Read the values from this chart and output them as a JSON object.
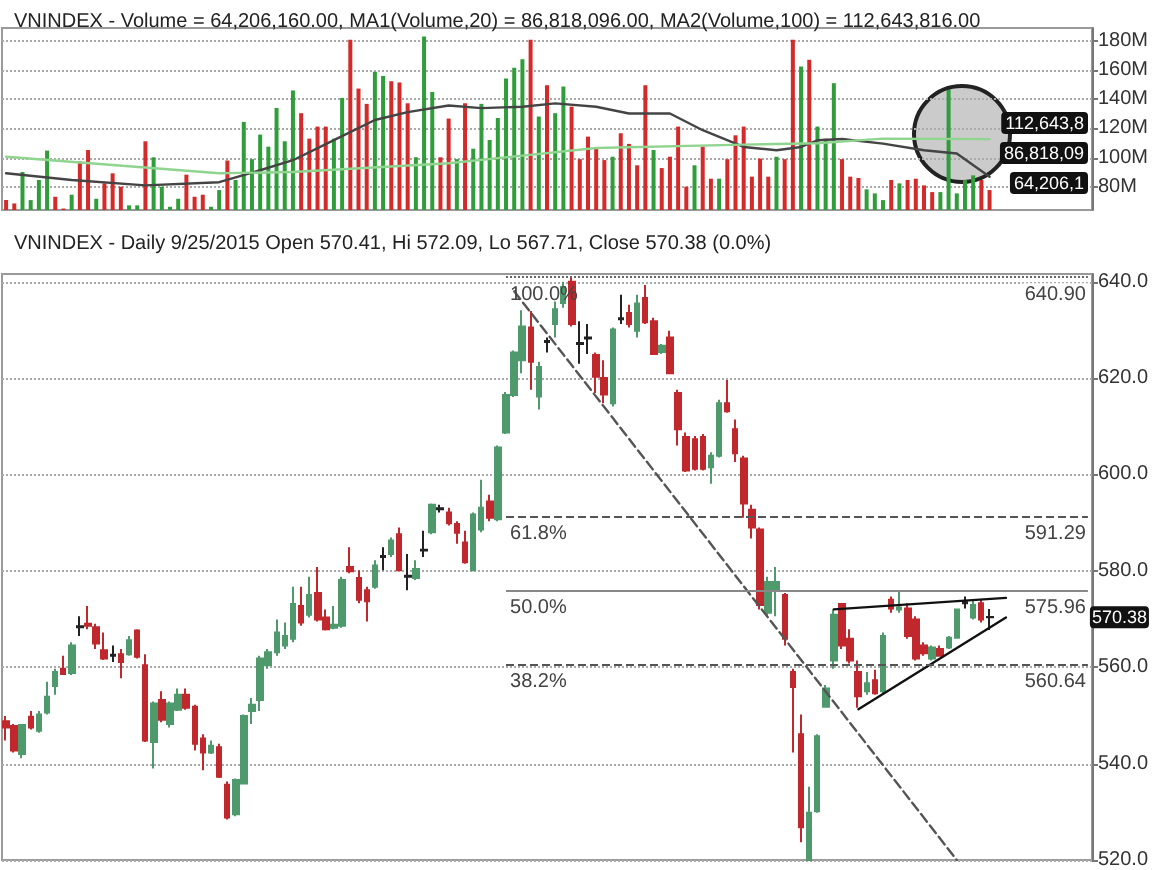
{
  "chart_data": [
    {
      "type": "bar",
      "title": "VNINDEX - Volume = 64,206,160.00, MA1(Volume,20) = 86,818,096.00, MA2(Volume,100) = 112,643,816.00",
      "categories": [
        null,
        null,
        null,
        null,
        null,
        null,
        null,
        null,
        null,
        null,
        null,
        null,
        null,
        null,
        null,
        null,
        null,
        null,
        null,
        null,
        null,
        null,
        null,
        null,
        null,
        null,
        null,
        null,
        null,
        null,
        null,
        null,
        null,
        null,
        null,
        null,
        null,
        null,
        null,
        null,
        null,
        null,
        null,
        null,
        null,
        null,
        null,
        null,
        null,
        null,
        null,
        null,
        null,
        null,
        null,
        null,
        null,
        null,
        null,
        null,
        null,
        null,
        null,
        null,
        null,
        null,
        null,
        null,
        null,
        null,
        null,
        null,
        null,
        null,
        null,
        null,
        null,
        null,
        null,
        null,
        null,
        null,
        null,
        null,
        null,
        null,
        null,
        null,
        null,
        null,
        null,
        null,
        null,
        null,
        null,
        null,
        null,
        null,
        null,
        null,
        null,
        null,
        null,
        null,
        null,
        null,
        null,
        null,
        null,
        null,
        null,
        null,
        null,
        null,
        null,
        null,
        null,
        null,
        null,
        null,
        null,
        null,
        null,
        null,
        null,
        null,
        null,
        null,
        null,
        null,
        null,
        null,
        null
      ],
      "series": [
        {
          "values": [
            70.8,
            68.5,
            90.1,
            70.8,
            84.6,
            104.8,
            73.1,
            65,
            74.5,
            97.4,
            105.2,
            71.7,
            82.3,
            89.2,
            80,
            67.2,
            67.2,
            111.2,
            100.2,
            80,
            66.2,
            71.7,
            88.3,
            73.1,
            74.5,
            66.2,
            77.7,
            98,
            84.6,
            124.5,
            98.9,
            115.8,
            107.5,
            134.1,
            111.2,
            146.1,
            130.5,
            113,
            121.3,
            121.3,
            113,
            141,
            180.9,
            147.4,
            136.9,
            158.9,
            156.1,
            152.5,
            151.6,
            137.3,
            100.2,
            183.2,
            145.1,
            100.2,
            126.8,
            98.9,
            137.3,
            106.1,
            136.9,
            112.1,
            127.2,
            154.3,
            161.7,
            167.6,
            180.9,
            128.2,
            149.7,
            130.5,
            148.8,
            135,
            98.9,
            114.4,
            106.1,
            98.3,
            100.6,
            116.7,
            109.4,
            94.7,
            149.7,
            105.2,
            92.8,
            100.6,
            121.3,
            80,
            94.7,
            107.5,
            85.5,
            85.5,
            98.9,
            115.3,
            121.3,
            86.9,
            99.3,
            86.9,
            100.6,
            98.9,
            180.9,
            162.6,
            167.2,
            121.3,
            113,
            151.1,
            98.9,
            86.9,
            86,
            78.2,
            75.4,
            70.8,
            84.6,
            82.3,
            84.6,
            85.5,
            80.9,
            76.3,
            76.3,
            146.5,
            75.4,
            84.6,
            87.8,
            84.6,
            77.7,
            null,
            null,
            null,
            null,
            null,
            null,
            null,
            null,
            null,
            null,
            null,
            null
          ],
          "colors": [
            "#d42a2a",
            "#d42a2a",
            "#2f9e3a",
            "#2f9e3a",
            "#2f9e3a",
            "#2f9e3a",
            "#d42a2a",
            "#d42a2a",
            "#2f9e3a",
            "#d42a2a",
            "#d42a2a",
            "#2f9e3a",
            "#d42a2a",
            "#d42a2a",
            "#d42a2a",
            "#2f9e3a",
            "#2f9e3a",
            "#d42a2a",
            "#2f9e3a",
            "#2f9e3a",
            "#2f9e3a",
            "#2f9e3a",
            "#d42a2a",
            "#d42a2a",
            "#d42a2a",
            "#2f9e3a",
            "#2f9e3a",
            "#d42a2a",
            "#2f9e3a",
            "#2f9e3a",
            "#2f9e3a",
            "#2f9e3a",
            "#2f9e3a",
            "#2f9e3a",
            "#2f9e3a",
            "#2f9e3a",
            "#d42a2a",
            "#d42a2a",
            "#d42a2a",
            "#d42a2a",
            "#2f9e3a",
            "#2f9e3a",
            "#d42a2a",
            "#d42a2a",
            "#d42a2a",
            "#2f9e3a",
            "#2f9e3a",
            "#d42a2a",
            "#d42a2a",
            "#d42a2a",
            "#2f9e3a",
            "#2f9e3a",
            "#2f9e3a",
            "#d42a2a",
            "#d42a2a",
            "#2f9e3a",
            "#d42a2a",
            "#2f9e3a",
            "#2f9e3a",
            "#2f9e3a",
            "#2f9e3a",
            "#2f9e3a",
            "#2f9e3a",
            "#2f9e3a",
            "#d42a2a",
            "#2f9e3a",
            "#d42a2a",
            "#2f9e3a",
            "#2f9e3a",
            "#d42a2a",
            "#d42a2a",
            "#d42a2a",
            "#d42a2a",
            "#d42a2a",
            "#2f9e3a",
            "#d42a2a",
            "#d42a2a",
            "#d42a2a",
            "#d42a2a",
            "#2f9e3a",
            "#d42a2a",
            "#d42a2a",
            "#d42a2a",
            "#d42a2a",
            "#2f9e3a",
            "#d42a2a",
            "#d42a2a",
            "#2f9e3a",
            "#d42a2a",
            "#d42a2a",
            "#d42a2a",
            "#d42a2a",
            "#d42a2a",
            "#d42a2a",
            "#2f9e3a",
            "#d42a2a",
            "#d42a2a",
            "#2f9e3a",
            "#d42a2a",
            "#2f9e3a",
            "#2f9e3a",
            "#2f9e3a",
            "#d42a2a",
            "#d42a2a",
            "#d42a2a",
            "#2f9e3a",
            "#2f9e3a",
            "#2f9e3a",
            "#d42a2a",
            "#2f9e3a",
            "#d42a2a",
            "#d42a2a",
            "#d42a2a",
            "#d42a2a",
            "#2f9e3a",
            "#2f9e3a",
            "#2f9e3a",
            "#2f9e3a",
            "#2f9e3a",
            "#d42a2a",
            "#d42a2a",
            null,
            null,
            null,
            null,
            null,
            null,
            null,
            null,
            null,
            null,
            null,
            null
          ]
        },
        {
          "type": "line",
          "color": "#444444",
          "values": [
            89.2,
            null,
            null,
            null,
            null,
            null,
            null,
            null,
            84.6,
            null,
            null,
            null,
            null,
            null,
            null,
            null,
            null,
            80.9,
            null,
            null,
            null,
            null,
            null,
            null,
            null,
            null,
            83.1,
            null,
            null,
            null,
            null,
            91.3,
            null,
            null,
            null,
            98.2,
            null,
            null,
            null,
            null,
            112,
            null,
            null,
            null,
            null,
            125.8,
            null,
            null,
            null,
            131.2,
            null,
            null,
            null,
            null,
            135.8,
            null,
            null,
            null,
            134,
            null,
            null,
            null,
            null,
            134.9,
            null,
            null,
            null,
            137.2,
            null,
            null,
            null,
            null,
            134.9,
            null,
            null,
            null,
            130.3,
            null,
            null,
            null,
            null,
            130.3,
            null,
            null,
            null,
            118.8,
            null,
            null,
            null,
            null,
            107.3,
            null,
            null,
            null,
            105,
            null,
            null,
            107.3,
            null,
            111.9,
            null,
            null,
            112.8,
            null,
            null,
            null,
            null,
            109.6,
            null,
            null,
            null,
            null,
            105,
            null,
            null,
            null,
            102.8,
            null,
            null,
            null,
            86.818,
            null,
            null,
            null,
            null,
            null,
            null,
            null,
            null,
            null,
            null,
            null,
            null
          ]
        },
        {
          "type": "line",
          "color": "#8fd48f",
          "values": [
            100.6,
            null,
            null,
            null,
            null,
            null,
            null,
            null,
            null,
            null,
            null,
            null,
            null,
            null,
            null,
            null,
            null,
            null,
            null,
            null,
            null,
            null,
            null,
            null,
            null,
            null,
            89.2,
            null,
            null,
            null,
            null,
            null,
            null,
            null,
            null,
            90.1,
            null,
            null,
            null,
            null,
            null,
            null,
            null,
            null,
            null,
            null,
            null,
            null,
            null,
            null,
            null,
            null,
            null,
            null,
            96.1,
            null,
            null,
            null,
            null,
            null,
            null,
            null,
            null,
            null,
            null,
            null,
            null,
            null,
            null,
            null,
            null,
            null,
            106.6,
            null,
            null,
            null,
            null,
            null,
            null,
            null,
            null,
            null,
            null,
            null,
            null,
            null,
            null,
            null,
            null,
            null,
            108.9,
            null,
            null,
            null,
            null,
            null,
            null,
            null,
            null,
            109.8,
            null,
            null,
            null,
            null,
            null,
            null,
            null,
            113,
            null,
            null,
            null,
            null,
            null,
            null,
            null,
            null,
            null,
            null,
            null,
            null,
            112.644,
            null,
            null,
            null,
            null,
            null,
            null,
            null,
            null,
            null,
            null,
            null,
            null
          ]
        }
      ],
      "ylim": [
        64,
        189
      ],
      "yticks": [
        {
          "value": 80,
          "label": "80M"
        },
        {
          "value": 100,
          "label": "100M"
        },
        {
          "value": 120,
          "label": "120M"
        },
        {
          "value": 140,
          "label": "140M"
        },
        {
          "value": 160,
          "label": "160M"
        },
        {
          "value": 180,
          "label": "180M"
        }
      ],
      "grid": "y",
      "tick_labels": "y",
      "annotations": [
        "112,643,8",
        "86,818,09",
        "64,206,1"
      ]
    },
    {
      "type": "candlestick",
      "title": "VNINDEX - Daily 9/25/2015 Open 570.41, Hi 572.09, Lo 567.71, Close 570.38 (0.0%)",
      "categories": [
        null,
        null,
        null,
        null,
        null,
        null,
        null,
        null,
        null,
        null,
        null,
        null,
        null,
        null,
        null,
        null,
        null,
        null,
        null,
        null,
        null,
        null,
        null,
        null,
        null,
        null,
        null,
        null,
        null,
        null,
        null,
        null,
        null,
        null,
        null,
        null,
        null,
        null,
        null,
        null,
        null,
        null,
        null,
        null,
        null,
        null,
        null,
        null,
        null,
        null,
        null,
        null,
        null,
        null,
        null,
        null,
        null,
        null,
        null,
        null,
        null,
        null,
        null,
        null,
        null,
        null,
        null,
        null,
        null,
        null,
        null,
        null,
        null,
        null,
        null,
        null,
        null,
        null,
        null,
        null,
        null,
        null,
        null,
        null,
        null,
        null,
        null,
        null,
        null,
        null,
        null,
        null,
        null,
        null,
        null,
        null,
        null,
        null,
        null,
        null,
        null,
        null,
        null,
        null,
        null,
        null,
        null,
        null,
        null,
        null,
        null,
        null,
        null,
        null,
        null,
        null,
        null,
        null,
        null,
        null,
        null,
        null,
        null,
        null,
        null,
        null,
        null,
        null,
        null,
        null,
        null,
        null,
        null
      ],
      "ohlc": [
        [
          548.8,
          549.9,
          544.8,
          547.5
        ],
        [
          547.8,
          548.2,
          542.3,
          542.7
        ],
        [
          542,
          548.2,
          541.1,
          548
        ],
        [
          549.7,
          550.9,
          547.1,
          547.5
        ],
        [
          546.8,
          550.9,
          546.4,
          550.2
        ],
        [
          550.6,
          557,
          550.2,
          553.9
        ],
        [
          556.1,
          559.7,
          554.3,
          559
        ],
        [
          559.7,
          562.4,
          558.4,
          558.6
        ],
        [
          558.8,
          565.2,
          558.4,
          564.5
        ],
        [
          568.3,
          570.6,
          566.5,
          568.5
        ],
        [
          569,
          572.7,
          567.9,
          568.6
        ],
        [
          568.3,
          569,
          563.8,
          564.9
        ],
        [
          563.5,
          567.2,
          561.5,
          561.8
        ],
        [
          562.4,
          564.5,
          561.1,
          562.6
        ],
        [
          562.7,
          563.8,
          557.7,
          561.1
        ],
        [
          562.7,
          566.5,
          562.4,
          565.6
        ],
        [
          567.6,
          567.9,
          561.8,
          562.2
        ],
        [
          560.4,
          562.7,
          544.5,
          544.8
        ],
        [
          544.5,
          552.9,
          539,
          552.5
        ],
        [
          553.2,
          555,
          548.6,
          549.1
        ],
        [
          548.2,
          552.9,
          547.5,
          552.5
        ],
        [
          551.2,
          555.6,
          550.9,
          554.3
        ],
        [
          554.3,
          555.6,
          551.2,
          551.6
        ],
        [
          551.8,
          552.2,
          542.7,
          544.1
        ],
        [
          545.2,
          546.1,
          538.6,
          542.3
        ],
        [
          542.3,
          544.8,
          542,
          543.7
        ],
        [
          543.4,
          544.1,
          537,
          537.3
        ],
        [
          535.6,
          536.3,
          528.4,
          528.8
        ],
        [
          529.5,
          536.9,
          529.1,
          536.6
        ],
        [
          535.9,
          550.2,
          535.9,
          549.9
        ],
        [
          550.9,
          553.6,
          548.2,
          552.2
        ],
        [
          553.2,
          562.4,
          550.9,
          561.8
        ],
        [
          560.4,
          563.8,
          559.7,
          563.1
        ],
        [
          563.1,
          569.9,
          562.4,
          567.2
        ],
        [
          564.5,
          569.3,
          563.8,
          566.5
        ],
        [
          565.9,
          576.7,
          565.2,
          573.1
        ],
        [
          572.7,
          576.7,
          568.6,
          569.3
        ],
        [
          570.9,
          578.8,
          570.3,
          575
        ],
        [
          575.4,
          580.8,
          569.5,
          569.9
        ],
        [
          570.3,
          572,
          567.6,
          567.9
        ],
        [
          568.2,
          572.7,
          567.9,
          568.8
        ],
        [
          568.6,
          578.8,
          568.2,
          578.1
        ],
        [
          580.8,
          584.9,
          579.5,
          579.9
        ],
        [
          578.5,
          580.1,
          573.3,
          574
        ],
        [
          576,
          576.7,
          569.5,
          573.7
        ],
        [
          576.7,
          582.2,
          576.3,
          581.1
        ],
        [
          582.9,
          584.9,
          580.1,
          583.1
        ],
        [
          583.5,
          586.9,
          582.9,
          586.3
        ],
        [
          587.6,
          589,
          579.9,
          580.1
        ],
        [
          578.8,
          583.5,
          576,
          579
        ],
        [
          578.5,
          582.2,
          578.1,
          580.4
        ],
        [
          584.2,
          588.3,
          582.9,
          584.4
        ],
        [
          588,
          594,
          587.6,
          593.7
        ],
        [
          592.8,
          593.7,
          592.1,
          593
        ],
        [
          592.1,
          593.1,
          589.4,
          589.9
        ],
        [
          589.7,
          590.3,
          585.6,
          587.9
        ],
        [
          585.9,
          588.3,
          581.5,
          581.8
        ],
        [
          580.1,
          592.1,
          579.9,
          591.7
        ],
        [
          588.6,
          598.9,
          588,
          593.1
        ],
        [
          594.4,
          595.8,
          590.3,
          591
        ],
        [
          590.7,
          606,
          590.3,
          605.6
        ],
        [
          608.7,
          617.1,
          608.4,
          616.5
        ],
        [
          616.5,
          625.7,
          616.1,
          625.3
        ],
        [
          623.7,
          634.1,
          621,
          630.7
        ],
        [
          630.5,
          633.9,
          617.6,
          623.4
        ],
        [
          616.2,
          623.4,
          613.5,
          622.3
        ],
        [
          627.5,
          628.4,
          625.3,
          627.7
        ],
        [
          631.2,
          635.9,
          628.4,
          634.3
        ],
        [
          635.6,
          640,
          634.6,
          638.9
        ],
        [
          640,
          640.9,
          630.7,
          631.2
        ],
        [
          627.1,
          631.8,
          623,
          627.3
        ],
        [
          628.2,
          631.2,
          625,
          628.4
        ],
        [
          624.8,
          625.3,
          616.9,
          620.3
        ],
        [
          620,
          623.7,
          614.8,
          616.6
        ],
        [
          614.8,
          630.5,
          614.1,
          630.1
        ],
        [
          632.2,
          637.3,
          631.2,
          632.4
        ],
        [
          633.5,
          635.2,
          630.5,
          631.2
        ],
        [
          629.8,
          637.3,
          628.4,
          635.5
        ],
        [
          636.6,
          639.3,
          631.2,
          631.6
        ],
        [
          631.8,
          632.5,
          624.8,
          625
        ],
        [
          625.4,
          627.1,
          625,
          626.7
        ],
        [
          628.4,
          629.8,
          621,
          621
        ],
        [
          616.9,
          617.6,
          606,
          609.4
        ],
        [
          607.8,
          608.7,
          600.5,
          600.8
        ],
        [
          607.3,
          608,
          600.8,
          601.2
        ],
        [
          607.8,
          608.4,
          600.8,
          601.2
        ],
        [
          601.5,
          604.6,
          598.1,
          603.9
        ],
        [
          603.9,
          615.5,
          603.5,
          614.8
        ],
        [
          614.8,
          619.6,
          612.8,
          613.1
        ],
        [
          609.4,
          611.4,
          602.6,
          604.4
        ],
        [
          603.3,
          603.9,
          591,
          594
        ],
        [
          592.7,
          593.7,
          586.7,
          589
        ],
        [
          588.6,
          589,
          572,
          572.9
        ],
        [
          571.3,
          578.8,
          570.6,
          577.7
        ],
        [
          576,
          580.8,
          570.6,
          577.7
        ],
        [
          575,
          575.4,
          564.5,
          565.9
        ],
        [
          559,
          559.7,
          542.3,
          555.9
        ],
        [
          546.1,
          550.2,
          523.7,
          526.8
        ],
        [
          520,
          535.2,
          520,
          529.8
        ],
        [
          530.1,
          546.1,
          529.8,
          545.7
        ],
        [
          551.8,
          556.3,
          551.6,
          555.6
        ],
        [
          561.4,
          572,
          559.7,
          570.9
        ],
        [
          573.1,
          573.3,
          563.8,
          564.5
        ],
        [
          565.9,
          567.9,
          560.8,
          561.4
        ],
        [
          559,
          561.4,
          551.6,
          554
        ],
        [
          555,
          559,
          554.3,
          556.7
        ],
        [
          557.3,
          559.5,
          554.3,
          554.6
        ],
        [
          555,
          567.2,
          554.6,
          566.5
        ],
        [
          574,
          574.7,
          571.3,
          572.2
        ],
        [
          572,
          576,
          571.3,
          572.4
        ],
        [
          572.2,
          573.3,
          565.9,
          566.5
        ],
        [
          569.9,
          570.6,
          561.4,
          561.8
        ],
        [
          564.5,
          565.2,
          562.4,
          562.9
        ],
        [
          561.8,
          564.5,
          561.4,
          564.1
        ],
        [
          563.8,
          564.5,
          562.2,
          562.4
        ],
        [
          564.1,
          566.5,
          563.8,
          566.1
        ],
        [
          566.1,
          572.2,
          565.9,
          572
        ],
        [
          573.3,
          574.7,
          572.2,
          573.5
        ],
        [
          570.3,
          574,
          569.9,
          572.9
        ],
        [
          573.3,
          574,
          569.3,
          569.9
        ],
        [
          570.41,
          572.09,
          567.71,
          570.38
        ],
        null,
        null,
        null,
        null,
        null,
        null,
        null,
        null,
        null,
        null,
        null,
        null
      ],
      "colors": [
        "#c0282d",
        "#c0282d",
        "#4e9a6c",
        "#c0282d",
        "#4e9a6c",
        "#4e9a6c",
        "#4e9a6c",
        "#c0282d",
        "#4e9a6c",
        "#222222",
        "#c0282d",
        "#c0282d",
        "#c0282d",
        "#222222",
        "#c0282d",
        "#4e9a6c",
        "#c0282d",
        "#c0282d",
        "#4e9a6c",
        "#c0282d",
        "#4e9a6c",
        "#4e9a6c",
        "#c0282d",
        "#c0282d",
        "#c0282d",
        "#4e9a6c",
        "#c0282d",
        "#c0282d",
        "#4e9a6c",
        "#4e9a6c",
        "#4e9a6c",
        "#4e9a6c",
        "#4e9a6c",
        "#4e9a6c",
        "#4e9a6c",
        "#4e9a6c",
        "#c0282d",
        "#4e9a6c",
        "#c0282d",
        "#c0282d",
        "#4e9a6c",
        "#4e9a6c",
        "#c0282d",
        "#c0282d",
        "#c0282d",
        "#4e9a6c",
        "#222222",
        "#4e9a6c",
        "#c0282d",
        "#222222",
        "#4e9a6c",
        "#222222",
        "#4e9a6c",
        "#222222",
        "#c0282d",
        "#c0282d",
        "#c0282d",
        "#4e9a6c",
        "#4e9a6c",
        "#c0282d",
        "#4e9a6c",
        "#4e9a6c",
        "#4e9a6c",
        "#4e9a6c",
        "#c0282d",
        "#4e9a6c",
        "#222222",
        "#4e9a6c",
        "#4e9a6c",
        "#c0282d",
        "#222222",
        "#222222",
        "#c0282d",
        "#c0282d",
        "#4e9a6c",
        "#222222",
        "#c0282d",
        "#4e9a6c",
        "#c0282d",
        "#c0282d",
        "#4e9a6c",
        "#c0282d",
        "#c0282d",
        "#c0282d",
        "#c0282d",
        "#c0282d",
        "#4e9a6c",
        "#4e9a6c",
        "#c0282d",
        "#c0282d",
        "#c0282d",
        "#c0282d",
        "#c0282d",
        "#4e9a6c",
        "#4e9a6c",
        "#c0282d",
        "#c0282d",
        "#c0282d",
        "#4e9a6c",
        "#4e9a6c",
        "#4e9a6c",
        "#4e9a6c",
        "#c0282d",
        "#c0282d",
        "#c0282d",
        "#4e9a6c",
        "#c0282d",
        "#4e9a6c",
        "#c0282d",
        "#4e9a6c",
        "#c0282d",
        "#c0282d",
        "#c0282d",
        "#4e9a6c",
        "#c0282d",
        "#4e9a6c",
        "#4e9a6c",
        "#222222",
        "#4e9a6c",
        "#c0282d",
        "#222222",
        null,
        null,
        null,
        null,
        null,
        null,
        null,
        null,
        null,
        null,
        null,
        null
      ],
      "series": [
        {
          "type": "line",
          "color": "#555555",
          "line_style": "dashed",
          "values": [
            null,
            null,
            null,
            null,
            null,
            null,
            null,
            null,
            null,
            null,
            null,
            null,
            null,
            null,
            null,
            null,
            null,
            null,
            null,
            null,
            null,
            null,
            null,
            null,
            null,
            null,
            null,
            null,
            null,
            null,
            null,
            null,
            null,
            null,
            null,
            null,
            null,
            null,
            null,
            null,
            null,
            null,
            null,
            null,
            null,
            null,
            null,
            null,
            null,
            null,
            null,
            null,
            null,
            null,
            null,
            null,
            null,
            null,
            null,
            null,
            null,
            null,
            638,
            null,
            null,
            null,
            null,
            null,
            null,
            null,
            null,
            null,
            null,
            null,
            null,
            null,
            null,
            null,
            null,
            null,
            null,
            null,
            null,
            null,
            null,
            null,
            null,
            null,
            null,
            null,
            null,
            null,
            null,
            null,
            null,
            null,
            null,
            null,
            null,
            null,
            null,
            null,
            null,
            null,
            null,
            null,
            null,
            null,
            null,
            null,
            null,
            null,
            null,
            null,
            null,
            null,
            520,
            null,
            null,
            null,
            null,
            null,
            null,
            null,
            null,
            null,
            null,
            null,
            null,
            null,
            null,
            null,
            null
          ]
        },
        {
          "type": "line",
          "color": "#111111",
          "values": [
            null,
            null,
            null,
            null,
            null,
            null,
            null,
            null,
            null,
            null,
            null,
            null,
            null,
            null,
            null,
            null,
            null,
            null,
            null,
            null,
            null,
            null,
            null,
            null,
            null,
            null,
            null,
            null,
            null,
            null,
            null,
            null,
            null,
            null,
            null,
            null,
            null,
            null,
            null,
            null,
            null,
            null,
            null,
            null,
            null,
            null,
            null,
            null,
            null,
            null,
            null,
            null,
            null,
            null,
            null,
            null,
            null,
            null,
            null,
            null,
            null,
            null,
            null,
            null,
            null,
            null,
            null,
            null,
            null,
            null,
            null,
            null,
            null,
            null,
            null,
            null,
            null,
            null,
            null,
            null,
            null,
            null,
            null,
            null,
            null,
            null,
            null,
            null,
            null,
            null,
            null,
            null,
            null,
            null,
            null,
            null,
            null,
            null,
            null,
            null,
            null,
            572,
            null,
            null,
            null,
            null,
            null,
            null,
            null,
            null,
            null,
            null,
            null,
            null,
            null,
            null,
            null,
            null,
            null,
            null,
            null,
            null,
            574.4,
            null,
            null,
            null,
            null,
            null,
            null,
            null,
            null,
            null,
            null
          ]
        },
        {
          "type": "line",
          "color": "#111111",
          "values": [
            null,
            null,
            null,
            null,
            null,
            null,
            null,
            null,
            null,
            null,
            null,
            null,
            null,
            null,
            null,
            null,
            null,
            null,
            null,
            null,
            null,
            null,
            null,
            null,
            null,
            null,
            null,
            null,
            null,
            null,
            null,
            null,
            null,
            null,
            null,
            null,
            null,
            null,
            null,
            null,
            null,
            null,
            null,
            null,
            null,
            null,
            null,
            null,
            null,
            null,
            null,
            null,
            null,
            null,
            null,
            null,
            null,
            null,
            null,
            null,
            null,
            null,
            null,
            null,
            null,
            null,
            null,
            null,
            null,
            null,
            null,
            null,
            null,
            null,
            null,
            null,
            null,
            null,
            null,
            null,
            null,
            null,
            null,
            null,
            null,
            null,
            null,
            null,
            null,
            null,
            null,
            null,
            null,
            null,
            null,
            null,
            null,
            null,
            null,
            null,
            null,
            null,
            null,
            null,
            551.3,
            null,
            null,
            null,
            null,
            null,
            null,
            null,
            null,
            null,
            null,
            null,
            null,
            null,
            null,
            null,
            null,
            null,
            570.3,
            null,
            null,
            null,
            null,
            null,
            null,
            null,
            null,
            null,
            null
          ]
        }
      ],
      "ref_lines": [
        {
          "axis": "y",
          "value": 640.9,
          "label": "640.90",
          "line_style": "dotted",
          "color": "#666666"
        },
        {
          "axis": "y",
          "value": 591.29,
          "label": "591.29",
          "line_style": "dashed",
          "color": "#555555"
        },
        {
          "axis": "y",
          "value": 575.96,
          "label": "575.96",
          "line_style": "solid",
          "color": "#888888"
        },
        {
          "axis": "y",
          "value": 560.64,
          "label": "560.64",
          "line_style": "dashed",
          "color": "#555555"
        }
      ],
      "ylim": [
        520,
        641.6
      ],
      "yticks": [
        {
          "value": 520,
          "label": "520.0"
        },
        {
          "value": 540,
          "label": "540.0"
        },
        {
          "value": 560,
          "label": "560.0"
        },
        {
          "value": 580,
          "label": "580.0"
        },
        {
          "value": 600,
          "label": "600.0"
        },
        {
          "value": 620,
          "label": "620.0"
        },
        {
          "value": 640,
          "label": "640.0"
        }
      ],
      "grid": "y",
      "tick_labels": "y",
      "annotations": [
        {
          "text": "100.0%",
          "y": 640.9
        },
        {
          "text": "61.8%",
          "y": 591.29
        },
        {
          "text": "50.0%",
          "y": 575.96
        },
        {
          "text": "38.2%",
          "y": 560.64
        },
        {
          "text": "570.38",
          "y": 570.38
        }
      ]
    }
  ]
}
